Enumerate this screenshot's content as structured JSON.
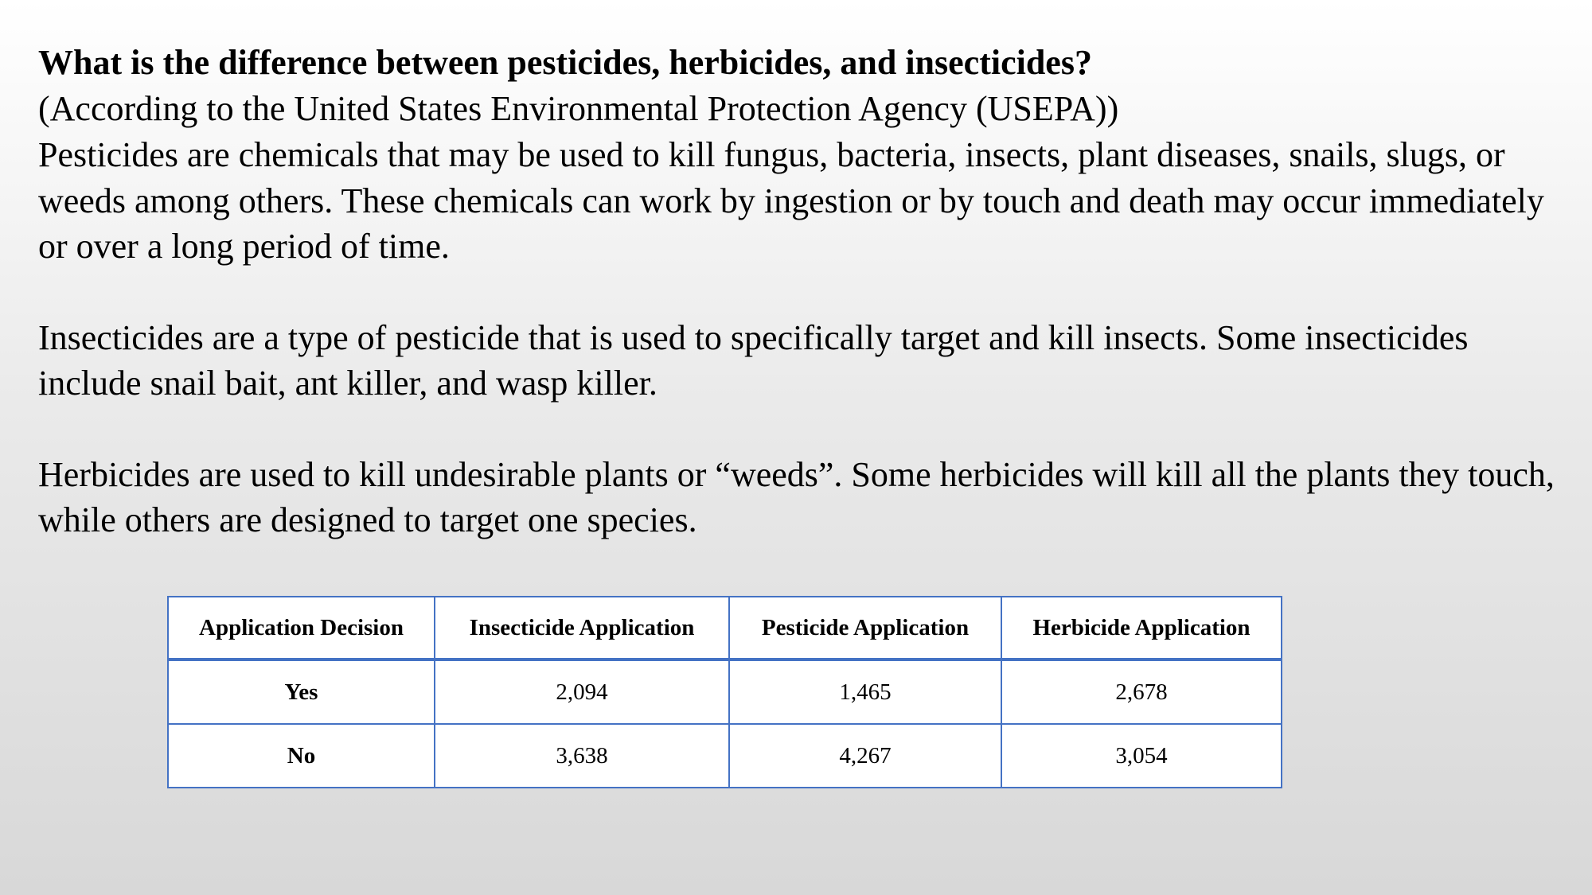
{
  "heading": "What is the difference between pesticides, herbicides, and insecticides?",
  "subheading": "(According to the United States Environmental Protection Agency (USEPA))",
  "paragraphs": {
    "pesticides": "Pesticides are chemicals that may be used to kill fungus, bacteria, insects, plant diseases, snails, slugs, or weeds among others. These chemicals can work by ingestion or by touch and death may occur immediately or over a long period of time.",
    "insecticides": "Insecticides are a type of pesticide that is used to specifically target and kill insects. Some insecticides include snail bait, ant killer, and wasp killer.",
    "herbicides": "Herbicides are used to kill undesirable plants or “weeds”. Some herbicides will kill all the plants they touch, while others are designed to target one species."
  },
  "table": {
    "headers": [
      "Application Decision",
      "Insecticide Application",
      "Pesticide Application",
      "Herbicide Application"
    ],
    "rows": [
      [
        "Yes",
        "2,094",
        "1,465",
        "2,678"
      ],
      [
        "No",
        "3,638",
        "4,267",
        "3,054"
      ]
    ]
  },
  "colors": {
    "table_border": "#4472c4",
    "text": "#000000"
  }
}
